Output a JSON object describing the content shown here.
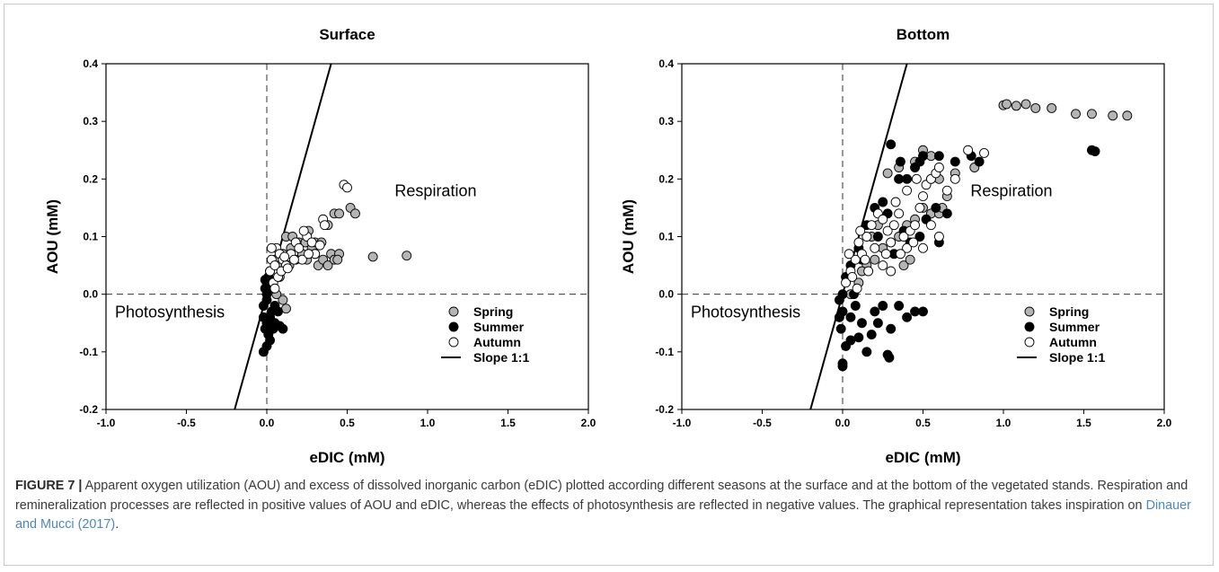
{
  "figure": {
    "label": "FIGURE 7 |",
    "caption_text": "Apparent oxygen utilization (AOU) and excess of dissolved inorganic carbon (eDIC) plotted according different seasons at the surface and at the bottom of the vegetated stands. Respiration and remineralization processes are reflected in positive values of AOU and eDIC, whereas the effects of photosynthesis are reflected in negative values. The graphical representation takes inspiration on ",
    "citation": "Dinauer and Mucci (2017)",
    "caption_end": "."
  },
  "colors": {
    "spring": "#b4b4b4",
    "summer": "#000000",
    "autumn": "#ffffff",
    "marker_edge": "#000000",
    "citation": "#4f88b8"
  },
  "chart_data": [
    {
      "type": "scatter",
      "title": "Surface",
      "xlabel": "eDIC (mM)",
      "ylabel": "AOU (mM)",
      "xlim": [
        -1.0,
        2.0
      ],
      "ylim": [
        -0.2,
        0.4
      ],
      "xticks": [
        "-1.0",
        "-0.5",
        "0.0",
        "0.5",
        "1.0",
        "1.5",
        "2.0"
      ],
      "yticks": [
        "-0.2",
        "-0.1",
        "0.0",
        "0.1",
        "0.2",
        "0.3",
        "0.4"
      ],
      "grid": false,
      "reference_lines": [
        {
          "type": "dashed",
          "orientation": "vertical",
          "x": 0.0
        },
        {
          "type": "dashed",
          "orientation": "horizontal",
          "y": 0.0
        },
        {
          "type": "solid",
          "name": "Slope 1:1",
          "points": [
            [
              -0.2,
              -0.2
            ],
            [
              0.4,
              0.4
            ]
          ]
        }
      ],
      "region_labels": [
        "Respiration",
        "Photosynthesis"
      ],
      "legend": {
        "position": "bottom-right",
        "entries": [
          "Spring",
          "Summer",
          "Autumn",
          "Slope 1:1"
        ]
      },
      "series": [
        {
          "name": "Spring",
          "points": [
            [
              0.05,
              0.06
            ],
            [
              0.08,
              0.05
            ],
            [
              0.1,
              0.07
            ],
            [
              0.12,
              0.1
            ],
            [
              0.15,
              0.08
            ],
            [
              0.18,
              0.06
            ],
            [
              0.2,
              0.09
            ],
            [
              0.22,
              0.07
            ],
            [
              0.25,
              0.06
            ],
            [
              0.28,
              0.08
            ],
            [
              0.3,
              0.09
            ],
            [
              0.32,
              0.05
            ],
            [
              0.35,
              0.06
            ],
            [
              0.38,
              0.05
            ],
            [
              0.4,
              0.07
            ],
            [
              0.42,
              0.06
            ],
            [
              0.45,
              0.07
            ],
            [
              0.42,
              0.14
            ],
            [
              0.45,
              0.14
            ],
            [
              0.52,
              0.15
            ],
            [
              0.55,
              0.14
            ],
            [
              0.66,
              0.065
            ],
            [
              0.87,
              0.067
            ],
            [
              0.1,
              -0.01
            ],
            [
              0.12,
              -0.025
            ],
            [
              0.06,
              0.0
            ],
            [
              0.08,
              0.03
            ],
            [
              0.14,
              0.05
            ],
            [
              0.16,
              0.1
            ],
            [
              0.24,
              0.09
            ],
            [
              0.3,
              0.07
            ],
            [
              0.34,
              0.09
            ],
            [
              0.38,
              0.12
            ],
            [
              0.44,
              0.06
            ],
            [
              0.26,
              0.11
            ]
          ]
        },
        {
          "name": "Summer",
          "points": [
            [
              -0.02,
              -0.04
            ],
            [
              0.0,
              -0.05
            ],
            [
              0.01,
              -0.07
            ],
            [
              0.0,
              -0.09
            ],
            [
              -0.02,
              -0.1
            ],
            [
              0.02,
              -0.08
            ],
            [
              -0.01,
              -0.06
            ],
            [
              0.03,
              -0.03
            ],
            [
              0.05,
              -0.05
            ],
            [
              0.06,
              -0.055
            ],
            [
              0.08,
              -0.055
            ],
            [
              0.1,
              -0.06
            ],
            [
              0.0,
              0.0
            ],
            [
              -0.01,
              0.01
            ],
            [
              0.0,
              0.02
            ],
            [
              0.01,
              0.03
            ],
            [
              0.02,
              0.04
            ],
            [
              0.04,
              0.01
            ],
            [
              0.05,
              -0.02
            ],
            [
              -0.02,
              -0.02
            ],
            [
              0.0,
              -0.01
            ],
            [
              0.02,
              -0.04
            ],
            [
              0.04,
              -0.06
            ],
            [
              0.07,
              -0.03
            ],
            [
              0.03,
              0.02
            ],
            [
              -0.01,
              0.025
            ]
          ]
        },
        {
          "name": "Autumn",
          "points": [
            [
              0.02,
              0.04
            ],
            [
              0.03,
              0.06
            ],
            [
              0.05,
              0.05
            ],
            [
              0.06,
              0.08
            ],
            [
              0.08,
              0.07
            ],
            [
              0.1,
              0.06
            ],
            [
              0.12,
              0.05
            ],
            [
              0.15,
              0.07
            ],
            [
              0.18,
              0.09
            ],
            [
              0.2,
              0.08
            ],
            [
              0.22,
              0.06
            ],
            [
              0.25,
              0.1
            ],
            [
              0.28,
              0.09
            ],
            [
              0.3,
              0.07
            ],
            [
              0.35,
              0.13
            ],
            [
              0.36,
              0.12
            ],
            [
              0.48,
              0.19
            ],
            [
              0.5,
              0.185
            ],
            [
              0.03,
              0.08
            ],
            [
              0.04,
              0.02
            ],
            [
              0.07,
              0.03
            ],
            [
              0.09,
              0.04
            ],
            [
              0.11,
              0.065
            ],
            [
              0.13,
              0.045
            ],
            [
              0.17,
              0.06
            ],
            [
              0.23,
              0.11
            ],
            [
              0.26,
              0.07
            ],
            [
              0.33,
              0.085
            ],
            [
              0.05,
              0.01
            ]
          ]
        }
      ]
    },
    {
      "type": "scatter",
      "title": "Bottom",
      "xlabel": "eDIC (mM)",
      "ylabel": "AOU (mM)",
      "xlim": [
        -1.0,
        2.0
      ],
      "ylim": [
        -0.2,
        0.4
      ],
      "xticks": [
        "-1.0",
        "-0.5",
        "0.0",
        "0.5",
        "1.0",
        "1.5",
        "2.0"
      ],
      "yticks": [
        "-0.2",
        "-0.1",
        "0.0",
        "0.1",
        "0.2",
        "0.3",
        "0.4"
      ],
      "grid": false,
      "reference_lines": [
        {
          "type": "dashed",
          "orientation": "vertical",
          "x": 0.0
        },
        {
          "type": "dashed",
          "orientation": "horizontal",
          "y": 0.0
        },
        {
          "type": "solid",
          "name": "Slope 1:1",
          "points": [
            [
              -0.2,
              -0.2
            ],
            [
              0.4,
              0.4
            ]
          ]
        }
      ],
      "region_labels": [
        "Respiration",
        "Photosynthesis"
      ],
      "legend": {
        "position": "bottom-right",
        "entries": [
          "Spring",
          "Summer",
          "Autumn",
          "Slope 1:1"
        ]
      },
      "series": [
        {
          "name": "Spring",
          "points": [
            [
              1.0,
              0.328
            ],
            [
              1.02,
              0.33
            ],
            [
              1.08,
              0.327
            ],
            [
              1.14,
              0.33
            ],
            [
              1.2,
              0.323
            ],
            [
              1.3,
              0.323
            ],
            [
              1.45,
              0.313
            ],
            [
              1.55,
              0.313
            ],
            [
              1.68,
              0.31
            ],
            [
              1.77,
              0.31
            ],
            [
              0.5,
              0.25
            ],
            [
              0.55,
              0.24
            ],
            [
              0.6,
              0.2
            ],
            [
              0.7,
              0.21
            ],
            [
              0.82,
              0.22
            ],
            [
              0.5,
              0.15
            ],
            [
              0.55,
              0.14
            ],
            [
              0.45,
              0.13
            ],
            [
              0.4,
              0.12
            ],
            [
              0.35,
              0.1
            ],
            [
              0.3,
              0.09
            ],
            [
              0.25,
              0.08
            ],
            [
              0.2,
              0.06
            ],
            [
              0.15,
              0.05
            ],
            [
              0.1,
              0.02
            ],
            [
              0.05,
              0.0
            ],
            [
              0.38,
              0.05
            ],
            [
              0.42,
              0.06
            ],
            [
              0.6,
              0.14
            ],
            [
              0.65,
              0.17
            ],
            [
              0.28,
              0.21
            ],
            [
              0.35,
              0.22
            ],
            [
              0.45,
              0.23
            ],
            [
              0.62,
              0.15
            ],
            [
              0.22,
              0.12
            ],
            [
              0.18,
              0.1
            ],
            [
              0.12,
              0.04
            ]
          ]
        },
        {
          "name": "Summer",
          "points": [
            [
              0.0,
              -0.12
            ],
            [
              0.0,
              -0.125
            ],
            [
              0.28,
              -0.105
            ],
            [
              0.29,
              -0.11
            ],
            [
              0.15,
              -0.1
            ],
            [
              0.05,
              -0.08
            ],
            [
              0.02,
              -0.09
            ],
            [
              0.1,
              -0.075
            ],
            [
              0.12,
              -0.05
            ],
            [
              0.2,
              -0.03
            ],
            [
              0.25,
              -0.02
            ],
            [
              0.35,
              -0.02
            ],
            [
              0.4,
              -0.04
            ],
            [
              0.45,
              -0.03
            ],
            [
              0.5,
              -0.03
            ],
            [
              0.3,
              -0.06
            ],
            [
              0.0,
              -0.03
            ],
            [
              -0.02,
              -0.04
            ],
            [
              -0.01,
              -0.06
            ],
            [
              0.05,
              -0.04
            ],
            [
              0.18,
              -0.07
            ],
            [
              0.22,
              -0.05
            ],
            [
              0.08,
              -0.02
            ],
            [
              0.0,
              0.0
            ],
            [
              0.02,
              0.03
            ],
            [
              0.05,
              0.05
            ],
            [
              0.1,
              0.08
            ],
            [
              0.15,
              0.12
            ],
            [
              0.2,
              0.15
            ],
            [
              0.25,
              0.16
            ],
            [
              0.3,
              0.26
            ],
            [
              0.35,
              0.2
            ],
            [
              0.4,
              0.2
            ],
            [
              0.45,
              0.22
            ],
            [
              0.48,
              0.23
            ],
            [
              0.5,
              0.24
            ],
            [
              0.55,
              0.2
            ],
            [
              0.58,
              0.15
            ],
            [
              0.6,
              0.09
            ],
            [
              0.65,
              0.14
            ],
            [
              0.7,
              0.23
            ],
            [
              0.8,
              0.24
            ],
            [
              0.85,
              0.23
            ],
            [
              1.55,
              0.25
            ],
            [
              1.57,
              0.248
            ],
            [
              0.38,
              0.11
            ],
            [
              0.42,
              0.09
            ],
            [
              0.28,
              0.14
            ],
            [
              0.22,
              0.1
            ],
            [
              0.12,
              0.06
            ],
            [
              0.32,
              0.07
            ],
            [
              0.48,
              0.1
            ],
            [
              0.52,
              0.13
            ],
            [
              0.36,
              0.23
            ],
            [
              0.6,
              0.24
            ],
            [
              -0.02,
              -0.01
            ],
            [
              0.07,
              0.0
            ]
          ]
        },
        {
          "name": "Autumn",
          "points": [
            [
              0.05,
              0.04
            ],
            [
              0.08,
              0.06
            ],
            [
              0.1,
              0.09
            ],
            [
              0.12,
              0.07
            ],
            [
              0.15,
              0.1
            ],
            [
              0.18,
              0.12
            ],
            [
              0.2,
              0.08
            ],
            [
              0.22,
              0.14
            ],
            [
              0.25,
              0.13
            ],
            [
              0.28,
              0.11
            ],
            [
              0.3,
              0.09
            ],
            [
              0.32,
              0.12
            ],
            [
              0.35,
              0.14
            ],
            [
              0.38,
              0.1
            ],
            [
              0.4,
              0.08
            ],
            [
              0.42,
              0.11
            ],
            [
              0.45,
              0.12
            ],
            [
              0.48,
              0.15
            ],
            [
              0.5,
              0.17
            ],
            [
              0.52,
              0.19
            ],
            [
              0.55,
              0.2
            ],
            [
              0.58,
              0.21
            ],
            [
              0.6,
              0.22
            ],
            [
              0.65,
              0.18
            ],
            [
              0.7,
              0.2
            ],
            [
              0.78,
              0.25
            ],
            [
              0.88,
              0.245
            ],
            [
              0.6,
              0.1
            ],
            [
              0.55,
              0.12
            ],
            [
              0.3,
              0.04
            ],
            [
              0.25,
              0.05
            ],
            [
              0.02,
              0.02
            ],
            [
              0.06,
              0.03
            ],
            [
              0.14,
              0.06
            ],
            [
              0.16,
              0.04
            ],
            [
              0.36,
              0.07
            ],
            [
              0.44,
              0.09
            ],
            [
              0.5,
              0.08
            ],
            [
              0.4,
              0.18
            ],
            [
              0.46,
              0.2
            ],
            [
              0.33,
              0.16
            ],
            [
              0.27,
              0.07
            ],
            [
              0.09,
              0.01
            ],
            [
              0.04,
              0.07
            ],
            [
              0.11,
              0.11
            ]
          ]
        }
      ]
    }
  ]
}
